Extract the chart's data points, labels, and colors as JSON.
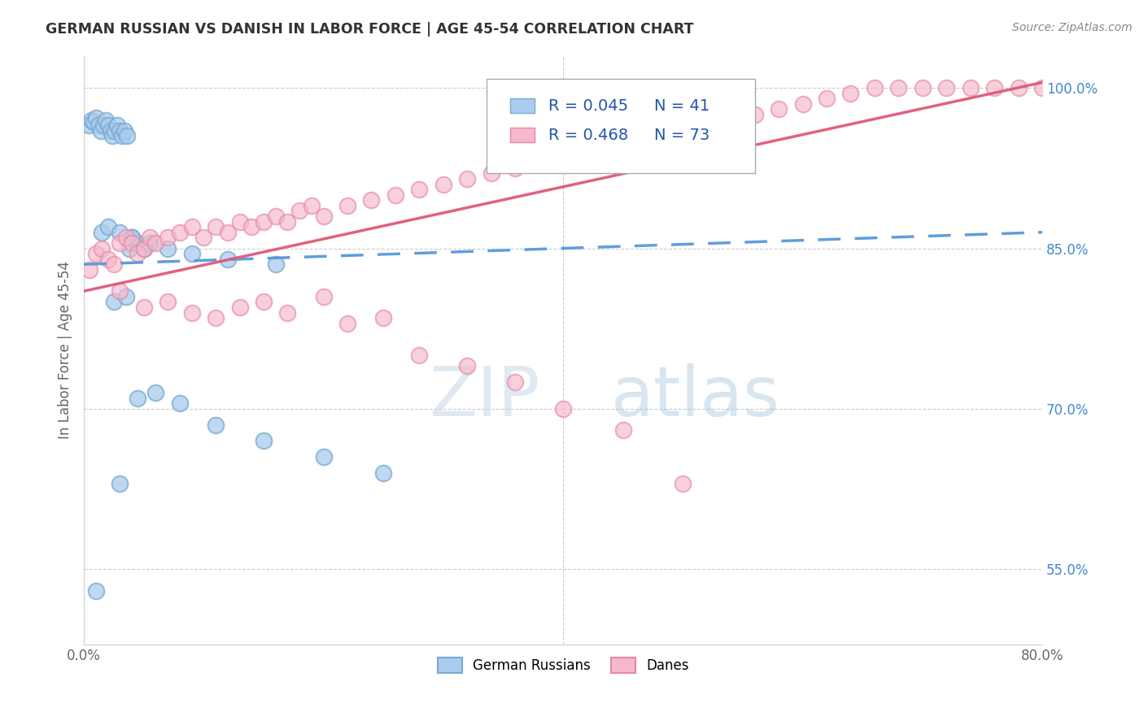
{
  "title": "GERMAN RUSSIAN VS DANISH IN LABOR FORCE | AGE 45-54 CORRELATION CHART",
  "source_text": "Source: ZipAtlas.com",
  "ylabel": "In Labor Force | Age 45-54",
  "xlim": [
    0.0,
    80.0
  ],
  "ylim": [
    48.0,
    103.0
  ],
  "xtick_positions": [
    0.0,
    40.0,
    80.0
  ],
  "xticklabels": [
    "0.0%",
    "",
    "80.0%"
  ],
  "ytick_positions": [
    55.0,
    70.0,
    85.0,
    100.0
  ],
  "ytick_labels": [
    "55.0%",
    "70.0%",
    "85.0%",
    "100.0%"
  ],
  "legend_items": [
    {
      "label": "German Russians",
      "R": 0.045,
      "N": 41
    },
    {
      "label": "Danes",
      "R": 0.468,
      "N": 73
    }
  ],
  "title_color": "#333333",
  "blue_line_color": "#5599dd",
  "pink_line_color": "#e05878",
  "grid_color": "#cccccc",
  "scatter_blue_color": "#aaccee",
  "scatter_pink_color": "#f5b8cc",
  "scatter_blue_edge": "#7aaad0",
  "scatter_pink_edge": "#e888a0",
  "legend_R_color": "#2255aa",
  "watermark_zip_color": "#c8dff0",
  "watermark_atlas_color": "#b0c8e8",
  "blue_scatter_x": [
    0.4,
    0.6,
    0.8,
    1.0,
    1.2,
    1.4,
    1.6,
    1.8,
    2.0,
    2.2,
    2.4,
    2.6,
    2.8,
    3.0,
    3.2,
    3.4,
    3.6,
    3.8,
    4.0,
    4.5,
    5.0,
    1.5,
    2.0,
    3.0,
    4.0,
    5.5,
    7.0,
    9.0,
    12.0,
    16.0,
    2.5,
    3.5,
    4.5,
    6.0,
    8.0,
    11.0,
    15.0,
    20.0,
    25.0,
    3.0,
    1.0
  ],
  "blue_scatter_y": [
    96.5,
    97.0,
    96.8,
    97.2,
    96.5,
    96.0,
    96.5,
    97.0,
    96.5,
    96.0,
    95.5,
    96.0,
    96.5,
    96.0,
    95.5,
    96.0,
    95.5,
    85.0,
    86.0,
    85.5,
    85.0,
    86.5,
    87.0,
    86.5,
    86.0,
    85.5,
    85.0,
    84.5,
    84.0,
    83.5,
    80.0,
    80.5,
    71.0,
    71.5,
    70.5,
    68.5,
    67.0,
    65.5,
    64.0,
    63.0,
    53.0
  ],
  "pink_scatter_x": [
    0.5,
    1.0,
    1.5,
    2.0,
    2.5,
    3.0,
    3.5,
    4.0,
    4.5,
    5.0,
    5.5,
    6.0,
    7.0,
    8.0,
    9.0,
    10.0,
    11.0,
    12.0,
    13.0,
    14.0,
    15.0,
    16.0,
    17.0,
    18.0,
    19.0,
    20.0,
    22.0,
    24.0,
    26.0,
    28.0,
    30.0,
    32.0,
    34.0,
    36.0,
    38.0,
    40.0,
    42.0,
    44.0,
    46.0,
    48.0,
    50.0,
    52.0,
    54.0,
    56.0,
    58.0,
    60.0,
    62.0,
    64.0,
    66.0,
    68.0,
    70.0,
    72.0,
    74.0,
    76.0,
    78.0,
    80.0,
    3.0,
    5.0,
    7.0,
    9.0,
    11.0,
    13.0,
    15.0,
    17.0,
    20.0,
    22.0,
    25.0,
    28.0,
    32.0,
    36.0,
    40.0,
    45.0,
    50.0
  ],
  "pink_scatter_y": [
    83.0,
    84.5,
    85.0,
    84.0,
    83.5,
    85.5,
    86.0,
    85.5,
    84.5,
    85.0,
    86.0,
    85.5,
    86.0,
    86.5,
    87.0,
    86.0,
    87.0,
    86.5,
    87.5,
    87.0,
    87.5,
    88.0,
    87.5,
    88.5,
    89.0,
    88.0,
    89.0,
    89.5,
    90.0,
    90.5,
    91.0,
    91.5,
    92.0,
    92.5,
    93.0,
    93.5,
    94.0,
    94.5,
    95.0,
    95.5,
    96.0,
    96.5,
    97.0,
    97.5,
    98.0,
    98.5,
    99.0,
    99.5,
    100.0,
    100.0,
    100.0,
    100.0,
    100.0,
    100.0,
    100.0,
    100.0,
    81.0,
    79.5,
    80.0,
    79.0,
    78.5,
    79.5,
    80.0,
    79.0,
    80.5,
    78.0,
    78.5,
    75.0,
    74.0,
    72.5,
    70.0,
    68.0,
    63.0
  ]
}
